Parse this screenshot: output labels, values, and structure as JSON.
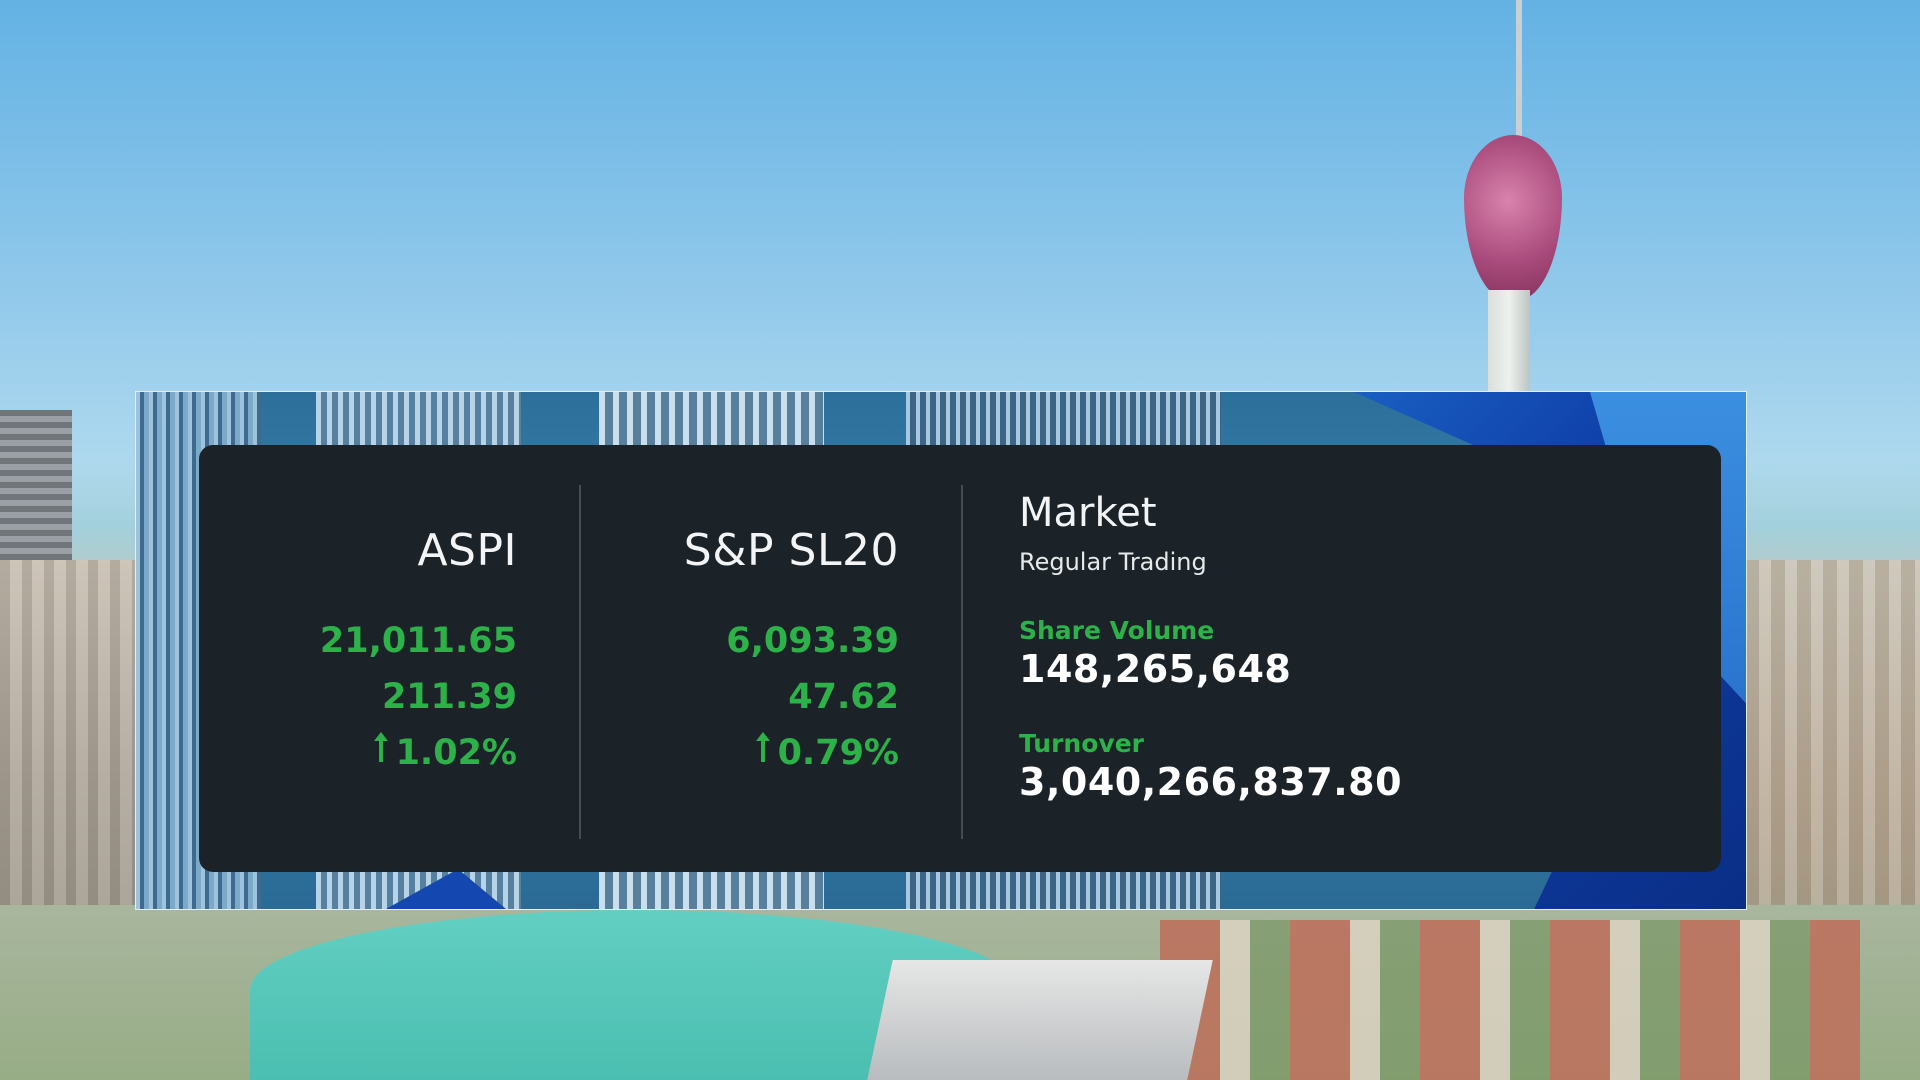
{
  "indices": [
    {
      "name": "ASPI",
      "value": "21,011.65",
      "change": "211.39",
      "change_pct": "1.02%",
      "direction": "up"
    },
    {
      "name": "S&P SL20",
      "value": "6,093.39",
      "change": "47.62",
      "change_pct": "0.79%",
      "direction": "up"
    }
  ],
  "market": {
    "title": "Market",
    "status": "Regular Trading",
    "share_volume_label": "Share Volume",
    "share_volume": "148,265,648",
    "turnover_label": "Turnover",
    "turnover": "3,040,266,837.80"
  },
  "icons": {
    "up_arrow": "arrow-up-icon"
  },
  "colors": {
    "panel_bg": "#1c2328",
    "positive": "#2db24a",
    "text_primary": "#f2f4f5"
  }
}
